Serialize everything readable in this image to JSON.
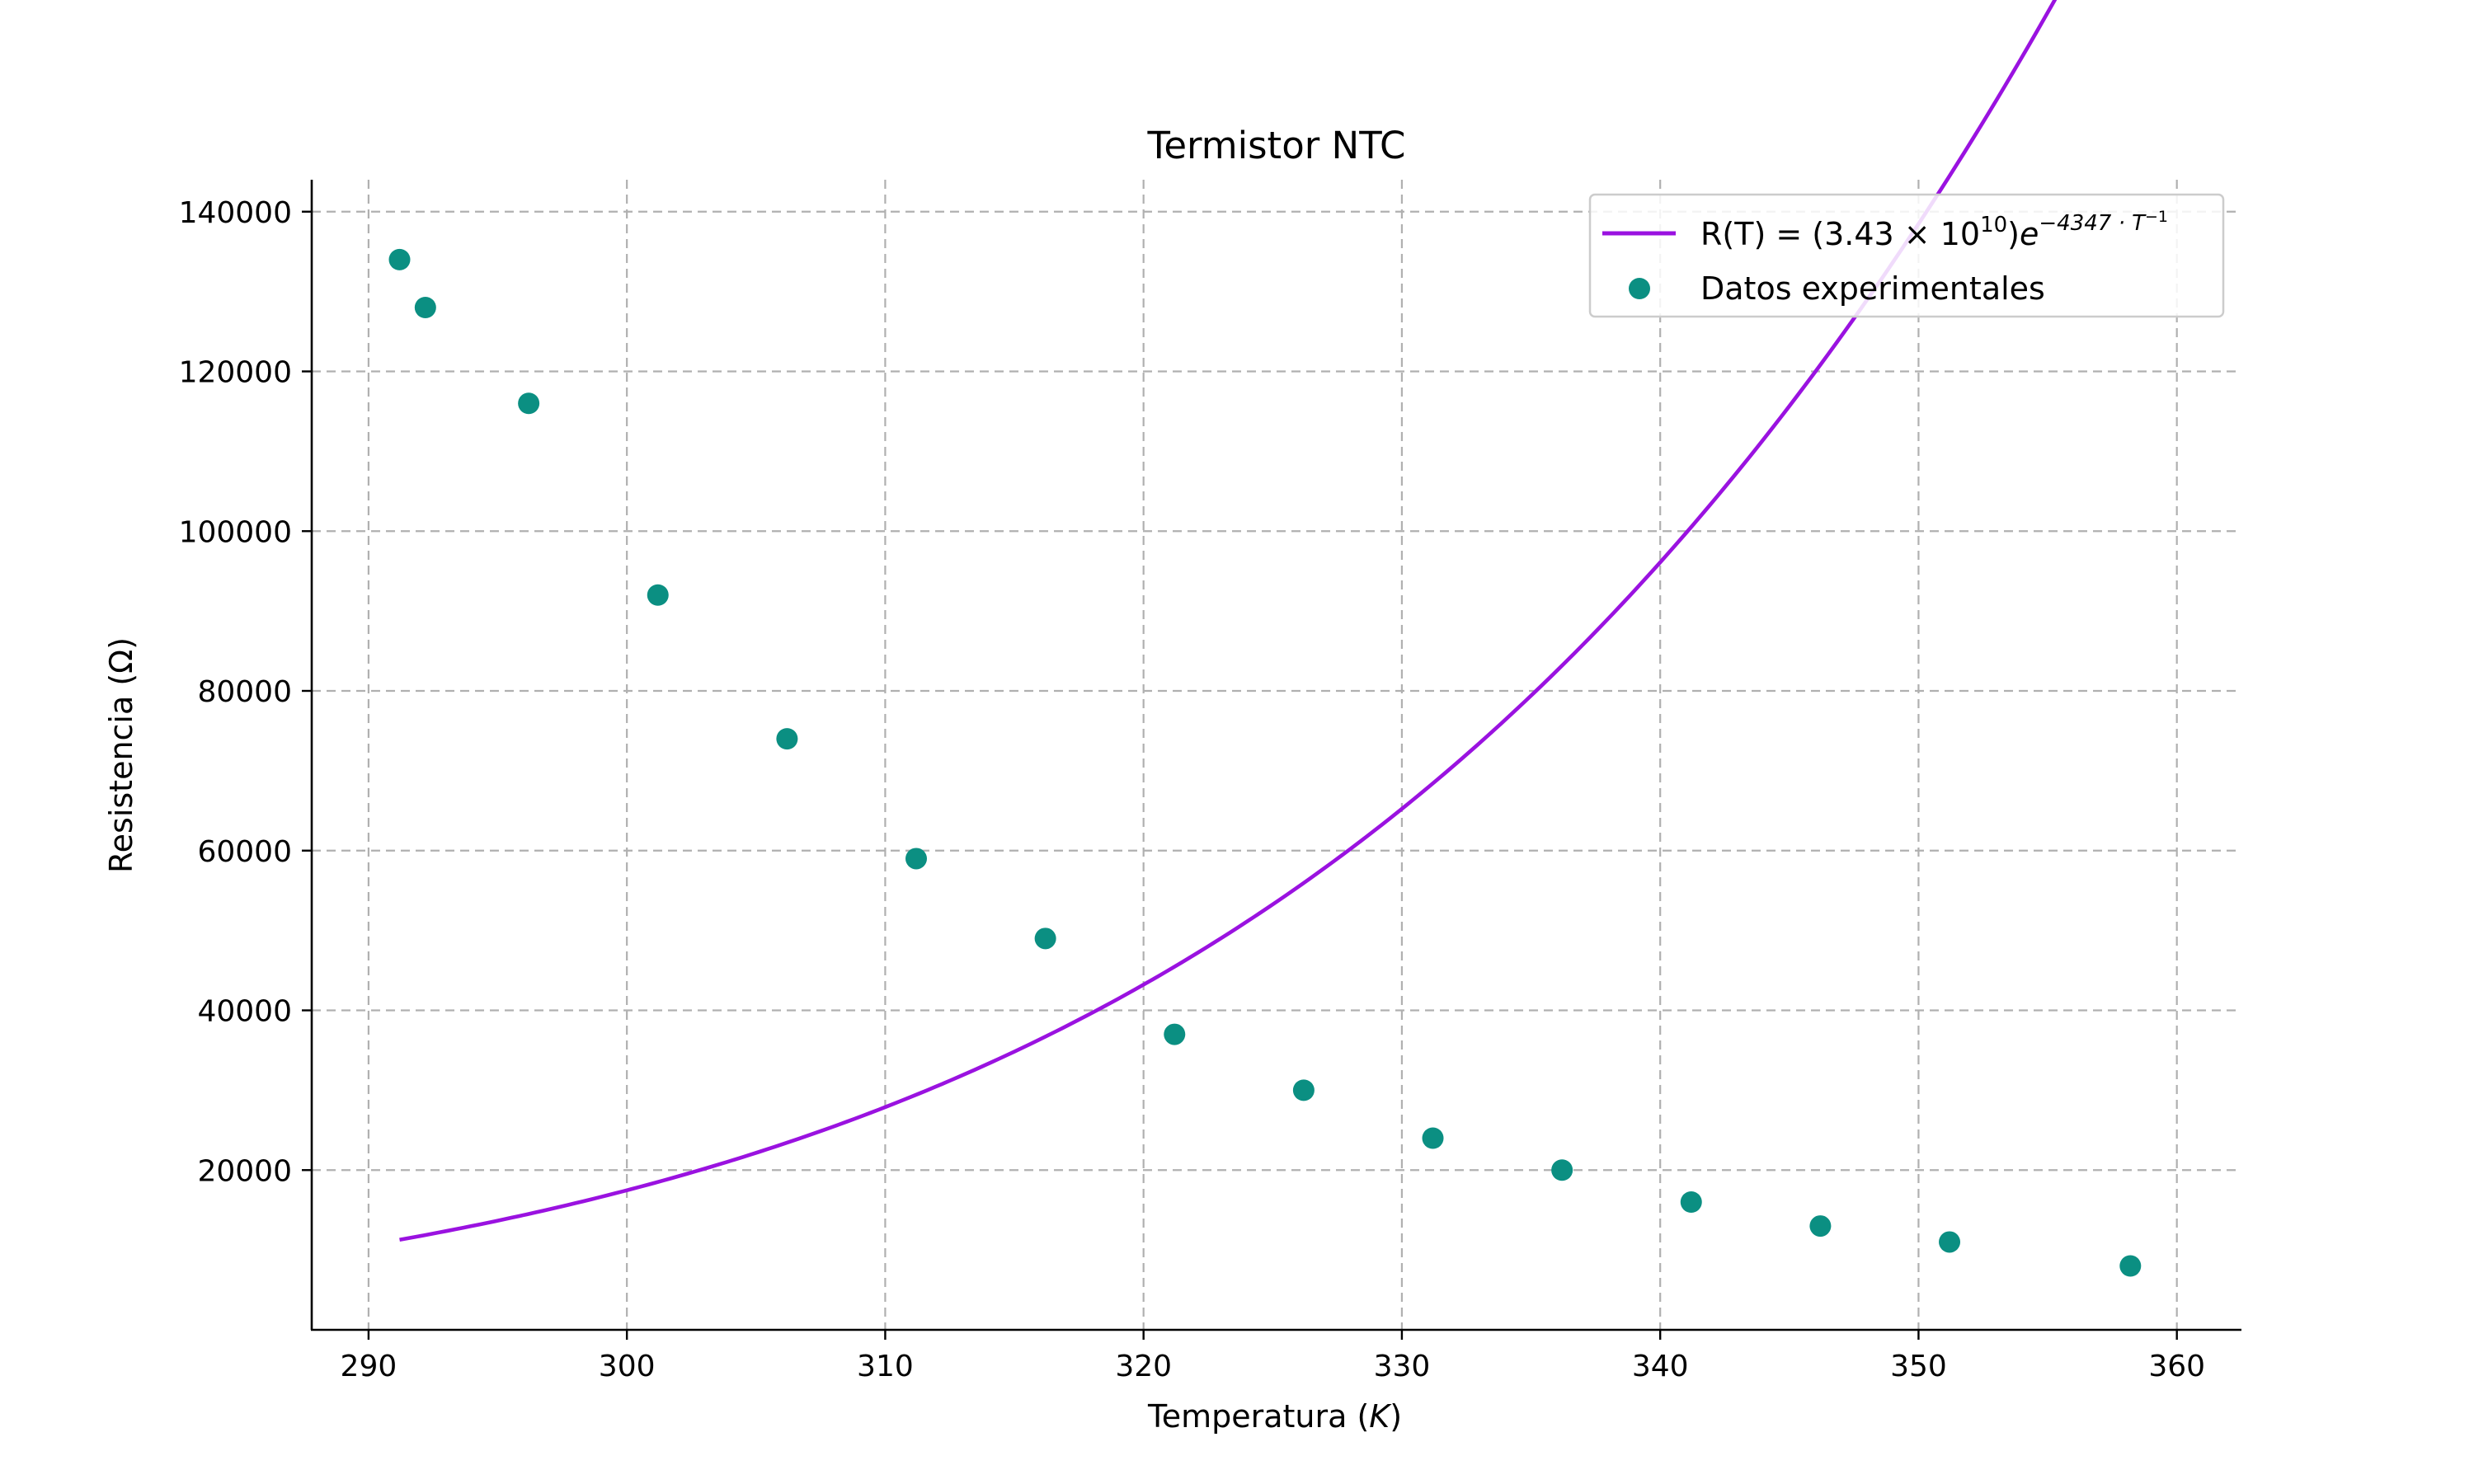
{
  "chart_data": {
    "type": "scatter",
    "title": "Termistor NTC",
    "xlabel": "Temperatura",
    "xlabel_unit": "K",
    "ylabel": "Resistencia (Ω)",
    "xlim": [
      287.8,
      362.5
    ],
    "ylim": [
      0,
      144000
    ],
    "x_ticks": [
      290,
      300,
      310,
      320,
      330,
      340,
      350,
      360
    ],
    "y_ticks": [
      20000,
      40000,
      60000,
      80000,
      100000,
      120000,
      140000
    ],
    "grid": true,
    "legend_position": "top-right",
    "fit": {
      "name": "R(T) = (3.43 × 10^10)e^(−4347 · T^−1)",
      "label_parts": {
        "prefix": "R(T) = (3.43 × 10",
        "exp1": "10",
        "mid": ")",
        "base": "e",
        "exp2": "−4347 · T",
        "exp3": "−1"
      },
      "A": 34300000000,
      "B": -4347,
      "x_range": [
        291.2,
        359.2
      ],
      "color": "#9a12e0"
    },
    "series": [
      {
        "name": "Datos experimentales",
        "color": "#0b8f82",
        "x": [
          291.2,
          292.2,
          296.2,
          301.2,
          306.2,
          311.2,
          316.2,
          321.2,
          326.2,
          331.2,
          336.2,
          341.2,
          346.2,
          351.2,
          358.2
        ],
        "y": [
          134000,
          128000,
          116000,
          92000,
          74000,
          59000,
          49000,
          37000,
          30000,
          24000,
          20000,
          16000,
          13000,
          11000,
          8000
        ]
      }
    ]
  }
}
